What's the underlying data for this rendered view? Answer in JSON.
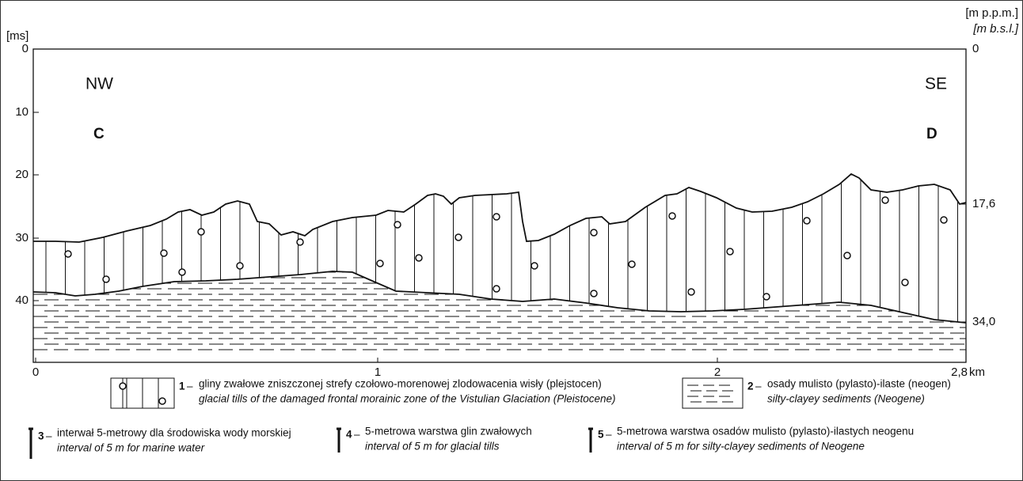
{
  "axes": {
    "left_unit": "[ms]",
    "right_unit": "[m p.p.m.]",
    "right_unit_en": "[m b.s.l.]",
    "left_ticks": [
      "0",
      "10",
      "20",
      "30",
      "40"
    ],
    "right_ticks": [
      "0",
      "17,6",
      "34,0"
    ],
    "bottom_ticks": [
      "0",
      "1",
      "2",
      "2,8"
    ],
    "bottom_unit": "km"
  },
  "labels": {
    "left_direction": "NW",
    "right_direction": "SE",
    "left_point": "C",
    "right_point": "D"
  },
  "legend": {
    "separator": "–",
    "items": [
      {
        "number": "1",
        "text_pl": "gliny zwałowe zniszczonej strefy czołowo-morenowej zlodowacenia wisły (plejstocen)",
        "text_en": "glacial tills of the damaged frontal morainic zone of the Vistulian Glaciation (Pleistocene)"
      },
      {
        "number": "2",
        "text_pl": "osady mulisto (pylasto)-ilaste (neogen)",
        "text_en": "silty-clayey sediments (Neogene)"
      },
      {
        "number": "3",
        "text_pl": "interwał 5-metrowy dla środowiska wody morskiej",
        "text_en": "interval of 5 m for marine water"
      },
      {
        "number": "4",
        "text_pl": "5-metrowa warstwa glin zwałowych",
        "text_en": "interval of 5 m for glacial tills"
      },
      {
        "number": "5",
        "text_pl": "5-metrowa warstwa osadów mulisto (pylasto)-ilastych neogenu",
        "text_en": "interval of 5 m for silty-clayey sediments of Neogene"
      }
    ]
  }
}
